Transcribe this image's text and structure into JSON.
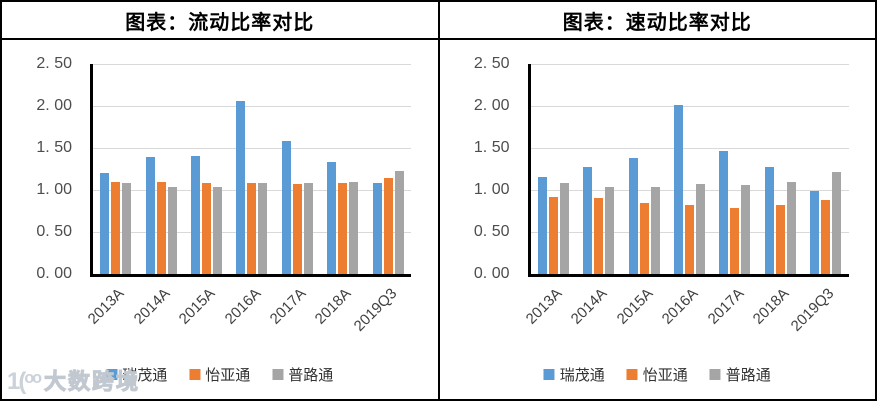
{
  "watermark": {
    "logo_text": "1(ᵒᵒ",
    "brand_text": "大数跨境"
  },
  "colors": {
    "series_blue": "#5B9BD5",
    "series_orange": "#ED7D31",
    "series_gray": "#A5A5A5",
    "gridline": "#D9D9D9",
    "axis": "#000000",
    "tick_text": "#4d4d4d",
    "table_border": "#000000"
  },
  "chart_data": [
    {
      "type": "bar",
      "title": "图表：流动比率对比",
      "categories": [
        "2013A",
        "2014A",
        "2015A",
        "2016A",
        "2017A",
        "2018A",
        "2019Q3"
      ],
      "series": [
        {
          "name": "瑞茂通",
          "color": "#5B9BD5",
          "values": [
            1.2,
            1.39,
            1.4,
            2.06,
            1.58,
            1.33,
            1.08
          ]
        },
        {
          "name": "怡亚通",
          "color": "#ED7D31",
          "values": [
            1.1,
            1.09,
            1.08,
            1.08,
            1.07,
            1.08,
            1.14
          ]
        },
        {
          "name": "普路通",
          "color": "#A5A5A5",
          "values": [
            1.08,
            1.03,
            1.03,
            1.08,
            1.08,
            1.1,
            1.23
          ]
        }
      ],
      "ylim": [
        0,
        2.5
      ],
      "y_tick_step": 0.5,
      "y_ticks": [
        "0. 00",
        "0. 50",
        "1. 00",
        "1. 50",
        "2. 00",
        "2. 50"
      ],
      "grid": true,
      "legend_position": "bottom"
    },
    {
      "type": "bar",
      "title": "图表：速动比率对比",
      "categories": [
        "2013A",
        "2014A",
        "2015A",
        "2016A",
        "2017A",
        "2018A",
        "2019Q3"
      ],
      "series": [
        {
          "name": "瑞茂通",
          "color": "#5B9BD5",
          "values": [
            1.16,
            1.27,
            1.38,
            2.01,
            1.47,
            1.27,
            0.99
          ]
        },
        {
          "name": "怡亚通",
          "color": "#ED7D31",
          "values": [
            0.92,
            0.9,
            0.85,
            0.82,
            0.78,
            0.82,
            0.88
          ]
        },
        {
          "name": "普路通",
          "color": "#A5A5A5",
          "values": [
            1.08,
            1.04,
            1.03,
            1.07,
            1.06,
            1.09,
            1.21
          ]
        }
      ],
      "ylim": [
        0,
        2.5
      ],
      "y_tick_step": 0.5,
      "y_ticks": [
        "0. 00",
        "0. 50",
        "1. 00",
        "1. 50",
        "2. 00",
        "2. 50"
      ],
      "grid": true,
      "legend_position": "bottom"
    }
  ]
}
